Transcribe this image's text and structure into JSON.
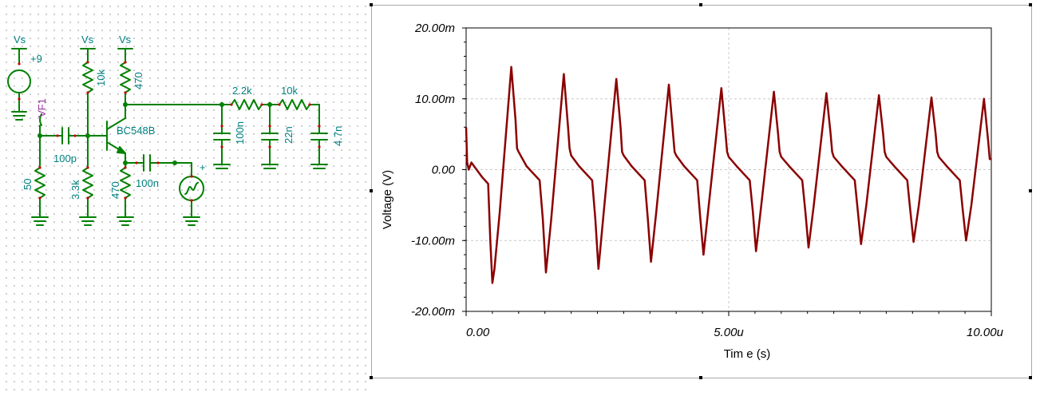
{
  "schematic": {
    "supply_label_1": "Vs",
    "supply_label_2": "Vs",
    "supply_label_3": "Vs",
    "source_value": "+9",
    "voltmeter": "VF1",
    "r_bias_top": "10k",
    "r_collector": "470",
    "r_input": "50",
    "r_bias_bottom": "3.3k",
    "r_emitter": "470",
    "c_input": "100p",
    "transistor": "BC548B",
    "c_emitter": "100n",
    "r_filter_1": "2.2k",
    "r_filter_2": "10k",
    "c_filter_1": "100n",
    "c_filter_2": "22n",
    "c_filter_3": "4.7n",
    "generator_plus": "+"
  },
  "chart_data": {
    "type": "line",
    "xlabel": "Tim e (s)",
    "ylabel": "Voltage (V)",
    "x_ticks": [
      "0.00",
      "5.00u",
      "10.00u"
    ],
    "y_ticks": [
      "20.00m",
      "10.00m",
      "0.00",
      "-10.00m",
      "-20.00m"
    ],
    "xlim": [
      0,
      1e-05
    ],
    "ylim": [
      -0.02,
      0.02
    ],
    "grid": true,
    "color": "#8b0000",
    "series": [
      {
        "name": "",
        "x": [
          0,
          2e-08,
          5e-08,
          1e-07,
          3e-07,
          4.2e-07,
          4.6e-07,
          5e-07,
          5.4e-07,
          6.4e-07,
          8.6e-07,
          9.4e-07,
          9.7e-07,
          1e-06,
          1.15e-06,
          1.4e-06,
          1.46e-06,
          1.52e-06,
          1.62e-06,
          1.86e-06,
          1.94e-06,
          1.97e-06,
          2e-06,
          2.15e-06,
          2.4e-06,
          2.46e-06,
          2.52e-06,
          2.62e-06,
          2.86e-06,
          2.94e-06,
          2.97e-06,
          3e-06,
          3.15e-06,
          3.4e-06,
          3.46e-06,
          3.52e-06,
          3.62e-06,
          3.86e-06,
          3.94e-06,
          3.97e-06,
          4e-06,
          4.15e-06,
          4.4e-06,
          4.46e-06,
          4.52e-06,
          4.62e-06,
          4.86e-06,
          4.94e-06,
          4.97e-06,
          5e-06,
          5.15e-06,
          5.4e-06,
          5.46e-06,
          5.52e-06,
          5.62e-06,
          5.86e-06,
          5.94e-06,
          5.97e-06,
          6e-06,
          6.15e-06,
          6.4e-06,
          6.46e-06,
          6.52e-06,
          6.62e-06,
          6.86e-06,
          6.94e-06,
          6.97e-06,
          7e-06,
          7.15e-06,
          7.4e-06,
          7.46e-06,
          7.52e-06,
          7.62e-06,
          7.86e-06,
          7.94e-06,
          7.97e-06,
          8e-06,
          8.15e-06,
          8.4e-06,
          8.46e-06,
          8.52e-06,
          8.62e-06,
          8.86e-06,
          8.94e-06,
          8.97e-06,
          9e-06,
          9.15e-06,
          9.4e-06,
          9.46e-06,
          9.52e-06,
          9.62e-06,
          9.86e-06,
          9.94e-06,
          9.97e-06,
          1e-05
        ],
        "y": [
          0.006,
          0.001,
          0.0,
          0.001,
          -0.001,
          -0.002,
          -0.01,
          -0.016,
          -0.014,
          -0.006,
          0.0145,
          0.007,
          0.003,
          0.0025,
          0.0005,
          -0.0015,
          -0.007,
          -0.0145,
          -0.007,
          0.0135,
          0.006,
          0.003,
          0.002,
          0.0005,
          -0.0015,
          -0.007,
          -0.014,
          -0.006,
          0.0128,
          0.006,
          0.0025,
          0.002,
          0.0005,
          -0.0015,
          -0.007,
          -0.013,
          -0.006,
          0.012,
          0.005,
          0.0025,
          0.002,
          0.0005,
          -0.0015,
          -0.007,
          -0.012,
          -0.005,
          0.0115,
          0.005,
          0.0025,
          0.0018,
          0.0005,
          -0.0015,
          -0.006,
          -0.0115,
          -0.005,
          0.011,
          0.005,
          0.0025,
          0.0018,
          0.0005,
          -0.0015,
          -0.006,
          -0.011,
          -0.005,
          0.0108,
          0.005,
          0.0025,
          0.0018,
          0.0005,
          -0.0015,
          -0.006,
          -0.0105,
          -0.005,
          0.0105,
          0.005,
          0.0025,
          0.0018,
          0.0005,
          -0.0015,
          -0.006,
          -0.0102,
          -0.005,
          0.0102,
          0.005,
          0.0025,
          0.0018,
          0.0005,
          -0.0015,
          -0.006,
          -0.01,
          -0.005,
          0.01,
          0.004,
          0.0015,
          0.0015
        ]
      }
    ]
  }
}
